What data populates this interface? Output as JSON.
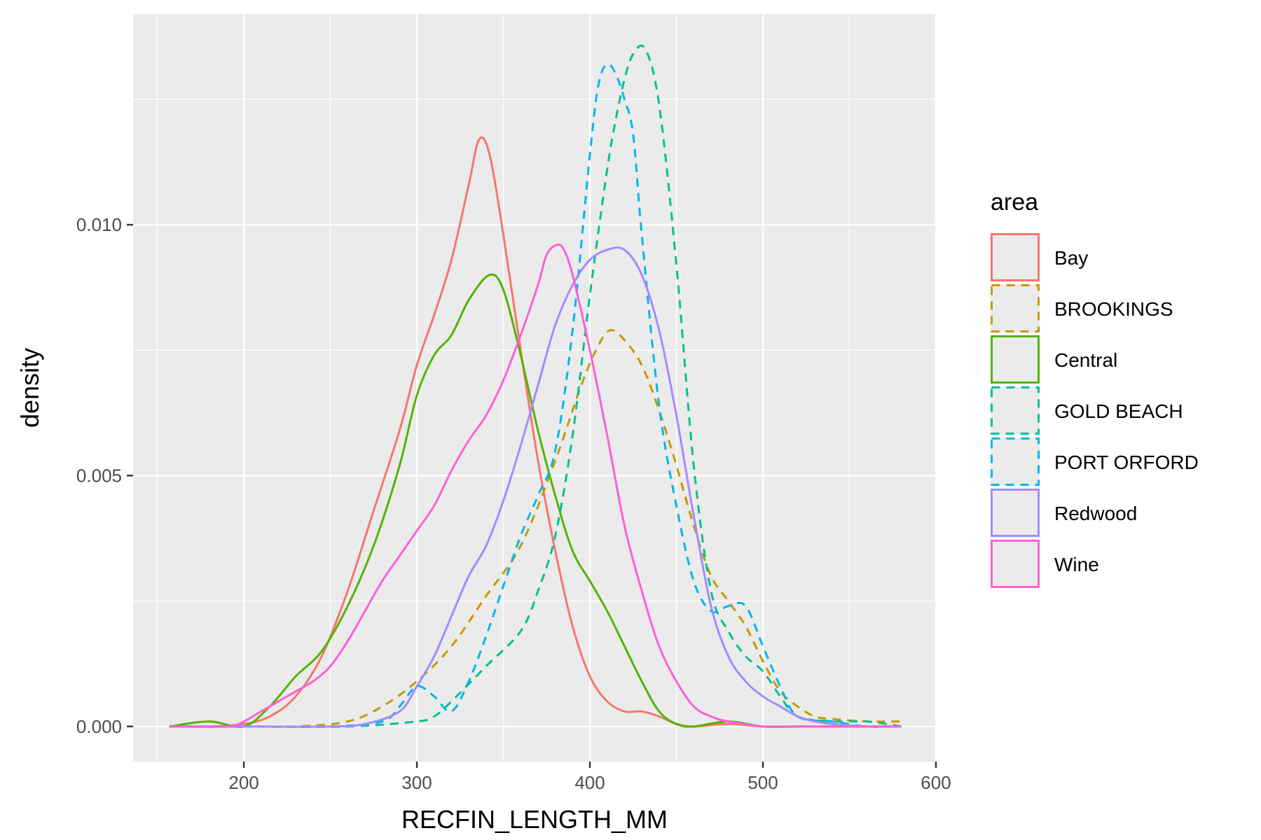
{
  "chart_data": {
    "type": "line",
    "title": "",
    "xlabel": "RECFIN_LENGTH_MM",
    "ylabel": "density",
    "xlim": [
      136,
      600
    ],
    "ylim": [
      -0.0007,
      0.0142
    ],
    "x_ticks": [
      200,
      300,
      400,
      500,
      600
    ],
    "x_tick_labels": [
      "200",
      "300",
      "400",
      "500",
      "600"
    ],
    "y_ticks": [
      0.0,
      0.005,
      0.01
    ],
    "y_tick_labels": [
      "0.000",
      "0.005",
      "0.010"
    ],
    "grid": true,
    "legend": {
      "title": "area",
      "position": "right"
    },
    "series": [
      {
        "name": "Bay",
        "color": "#F8766D",
        "dashed": false,
        "x": [
          157,
          180,
          200,
          215,
          230,
          245,
          260,
          275,
          290,
          300,
          310,
          320,
          330,
          336,
          342,
          350,
          360,
          370,
          380,
          390,
          400,
          410,
          420,
          430,
          440,
          450,
          460,
          480,
          500,
          520,
          540,
          560,
          580
        ],
        "y": [
          0.0,
          0.0,
          5e-05,
          0.0002,
          0.0006,
          0.0014,
          0.0027,
          0.0043,
          0.0059,
          0.0072,
          0.0082,
          0.0093,
          0.0108,
          0.0117,
          0.0114,
          0.0098,
          0.0075,
          0.0053,
          0.0035,
          0.002,
          0.001,
          0.0005,
          0.0003,
          0.0003,
          0.0002,
          5e-05,
          0.0,
          5e-05,
          0.0,
          0.0,
          0.0,
          0.0,
          0.0
        ]
      },
      {
        "name": "BROOKINGS",
        "color": "#C49A00",
        "dashed": true,
        "x": [
          157,
          200,
          230,
          260,
          280,
          300,
          320,
          340,
          360,
          380,
          395,
          405,
          412,
          420,
          430,
          440,
          450,
          460,
          470,
          480,
          490,
          500,
          510,
          520,
          530,
          540,
          560,
          580
        ],
        "y": [
          0.0,
          0.0,
          0.0,
          0.0001,
          0.0004,
          0.0009,
          0.0016,
          0.0026,
          0.0036,
          0.0053,
          0.0068,
          0.0076,
          0.0079,
          0.0077,
          0.0072,
          0.0063,
          0.0052,
          0.004,
          0.003,
          0.0025,
          0.002,
          0.0013,
          0.0007,
          0.0004,
          0.0002,
          0.00015,
          0.0001,
          0.0001
        ]
      },
      {
        "name": "Central",
        "color": "#53B400",
        "dashed": false,
        "x": [
          157,
          180,
          200,
          215,
          230,
          245,
          260,
          275,
          290,
          300,
          310,
          320,
          330,
          342,
          350,
          360,
          370,
          380,
          390,
          400,
          410,
          420,
          430,
          440,
          450,
          460,
          480,
          500,
          520,
          540,
          560,
          580
        ],
        "y": [
          0.0,
          0.0001,
          0.0,
          0.0004,
          0.001,
          0.0015,
          0.0024,
          0.0036,
          0.0052,
          0.0066,
          0.0074,
          0.0078,
          0.0085,
          0.009,
          0.0087,
          0.0074,
          0.0059,
          0.0046,
          0.0035,
          0.0029,
          0.0023,
          0.0016,
          0.0009,
          0.0003,
          5e-05,
          0.0,
          0.0001,
          0.0,
          0.0,
          0.0,
          0.0,
          0.0
        ]
      },
      {
        "name": "GOLD BEACH",
        "color": "#00C094",
        "dashed": true,
        "x": [
          157,
          200,
          260,
          300,
          310,
          320,
          340,
          360,
          370,
          380,
          390,
          400,
          410,
          415,
          420,
          425,
          432,
          440,
          450,
          460,
          470,
          480,
          490,
          500,
          510,
          520,
          540,
          560,
          580
        ],
        "y": [
          0.0,
          0.0,
          0.0,
          0.0001,
          0.0002,
          0.0005,
          0.0012,
          0.0019,
          0.0027,
          0.0038,
          0.0058,
          0.0086,
          0.0111,
          0.0121,
          0.0129,
          0.0134,
          0.0135,
          0.0124,
          0.0092,
          0.0052,
          0.0027,
          0.0019,
          0.0014,
          0.0011,
          0.0006,
          0.0002,
          0.0001,
          0.0001,
          0.0
        ]
      },
      {
        "name": "PORT ORFORD",
        "color": "#00B6EB",
        "dashed": true,
        "x": [
          157,
          200,
          250,
          280,
          290,
          300,
          310,
          320,
          330,
          340,
          350,
          360,
          370,
          380,
          390,
          400,
          405,
          410,
          415,
          420,
          425,
          430,
          440,
          450,
          460,
          470,
          480,
          490,
          500,
          510,
          520,
          540,
          560,
          580
        ],
        "y": [
          0.0,
          0.0,
          0.0,
          0.0001,
          0.0004,
          0.0008,
          0.0006,
          0.0003,
          0.0009,
          0.0018,
          0.0028,
          0.0038,
          0.0046,
          0.0055,
          0.0079,
          0.0114,
          0.0128,
          0.0132,
          0.013,
          0.0125,
          0.0118,
          0.0098,
          0.0064,
          0.0044,
          0.0029,
          0.0023,
          0.0024,
          0.0024,
          0.0016,
          0.0008,
          0.0002,
          0.0001,
          0.0,
          0.0
        ]
      },
      {
        "name": "Redwood",
        "color": "#A58AFF",
        "dashed": false,
        "x": [
          157,
          200,
          250,
          270,
          290,
          300,
          310,
          320,
          330,
          340,
          350,
          360,
          370,
          380,
          390,
          400,
          410,
          420,
          430,
          440,
          450,
          460,
          470,
          480,
          490,
          500,
          510,
          520,
          530,
          540,
          560,
          580
        ],
        "y": [
          0.0,
          0.0,
          0.0,
          5e-05,
          0.0003,
          0.0008,
          0.0014,
          0.0022,
          0.003,
          0.0036,
          0.0045,
          0.0056,
          0.0068,
          0.008,
          0.0088,
          0.0093,
          0.0095,
          0.0095,
          0.009,
          0.0079,
          0.0062,
          0.0042,
          0.0024,
          0.0014,
          0.0009,
          0.0006,
          0.0004,
          0.0002,
          0.0001,
          5e-05,
          0.0,
          0.0
        ]
      },
      {
        "name": "Wine",
        "color": "#FB61D7",
        "dashed": false,
        "x": [
          157,
          190,
          200,
          210,
          220,
          230,
          240,
          250,
          260,
          270,
          280,
          290,
          300,
          310,
          320,
          330,
          340,
          350,
          360,
          370,
          375,
          381,
          385,
          390,
          400,
          410,
          420,
          430,
          440,
          450,
          460,
          470,
          480,
          500,
          520,
          540,
          560,
          580
        ],
        "y": [
          0.0,
          0.0,
          0.0001,
          0.0003,
          0.0005,
          0.0007,
          0.0009,
          0.0012,
          0.0017,
          0.0023,
          0.0029,
          0.0034,
          0.0039,
          0.0044,
          0.0051,
          0.0057,
          0.0062,
          0.0069,
          0.0078,
          0.0088,
          0.0094,
          0.0096,
          0.0095,
          0.009,
          0.0075,
          0.0058,
          0.004,
          0.0027,
          0.0016,
          0.0009,
          0.0004,
          0.0002,
          0.0001,
          0.0,
          0.0,
          0.0,
          0.0,
          0.0
        ]
      }
    ]
  }
}
